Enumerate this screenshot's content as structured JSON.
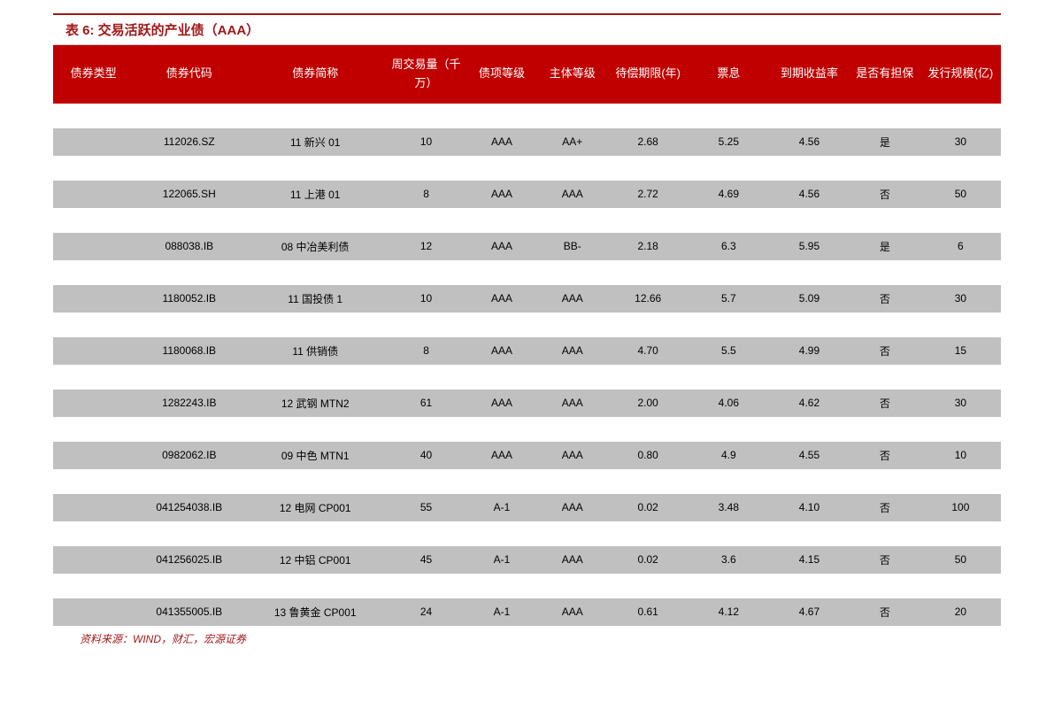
{
  "title": "表 6:  交易活跃的产业债（AAA）",
  "source": "资料来源：WIND，财汇，宏源证券",
  "colors": {
    "title_color": "#a01818",
    "title_border": "#a01818",
    "header_bg": "#c00000",
    "header_text": "#ffffff",
    "row_bg": "#c0c0c0",
    "row_text": "#000000",
    "source_color": "#a01818",
    "background": "#ffffff"
  },
  "table": {
    "columns": [
      "债券类型",
      "债券代码",
      "债券简称",
      "周交易量（千万）",
      "债项等级",
      "主体等级",
      "待偿期限(年)",
      "票息",
      "到期收益率",
      "是否有担保",
      "发行规模(亿)"
    ],
    "rows": [
      [
        "",
        "112026.SZ",
        "11 新兴 01",
        "10",
        "AAA",
        "AA+",
        "2.68",
        "5.25",
        "4.56",
        "是",
        "30"
      ],
      [
        "",
        "122065.SH",
        "11 上港 01",
        "8",
        "AAA",
        "AAA",
        "2.72",
        "4.69",
        "4.56",
        "否",
        "50"
      ],
      [
        "",
        "088038.IB",
        "08 中冶美利债",
        "12",
        "AAA",
        "BB-",
        "2.18",
        "6.3",
        "5.95",
        "是",
        "6"
      ],
      [
        "",
        "1180052.IB",
        "11 国投债 1",
        "10",
        "AAA",
        "AAA",
        "12.66",
        "5.7",
        "5.09",
        "否",
        "30"
      ],
      [
        "",
        "1180068.IB",
        "11 供销债",
        "8",
        "AAA",
        "AAA",
        "4.70",
        "5.5",
        "4.99",
        "否",
        "15"
      ],
      [
        "",
        "1282243.IB",
        "12 武钢 MTN2",
        "61",
        "AAA",
        "AAA",
        "2.00",
        "4.06",
        "4.62",
        "否",
        "30"
      ],
      [
        "",
        "0982062.IB",
        "09 中色 MTN1",
        "40",
        "AAA",
        "AAA",
        "0.80",
        "4.9",
        "4.55",
        "否",
        "10"
      ],
      [
        "",
        "041254038.IB",
        "12 电网 CP001",
        "55",
        "A-1",
        "AAA",
        "0.02",
        "3.48",
        "4.10",
        "否",
        "100"
      ],
      [
        "",
        "041256025.IB",
        "12 中铝 CP001",
        "45",
        "A-1",
        "AAA",
        "0.02",
        "3.6",
        "4.15",
        "否",
        "50"
      ],
      [
        "",
        "041355005.IB",
        "13 鲁黄金 CP001",
        "24",
        "A-1",
        "AAA",
        "0.61",
        "4.12",
        "4.67",
        "否",
        "20"
      ]
    ]
  }
}
